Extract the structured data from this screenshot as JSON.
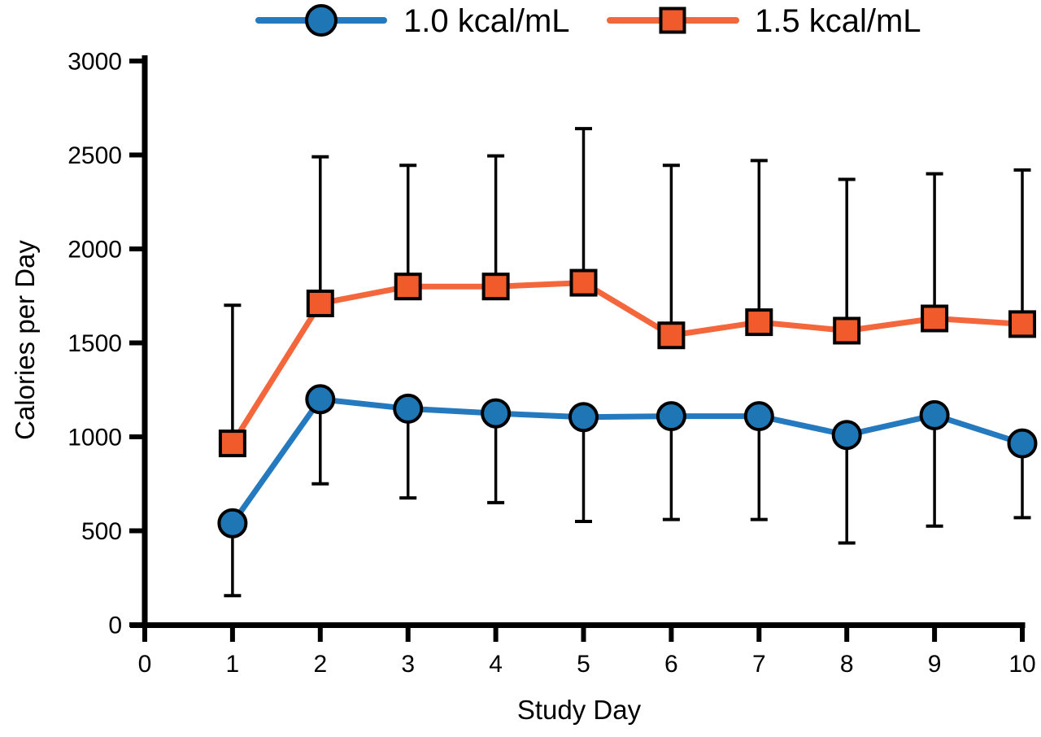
{
  "chart_data": {
    "type": "line",
    "title": "",
    "xlabel": "Study Day",
    "ylabel": "Calories per Day",
    "x": [
      1,
      2,
      3,
      4,
      5,
      6,
      7,
      8,
      9,
      10
    ],
    "xlim": [
      0,
      10
    ],
    "ylim": [
      0,
      3000
    ],
    "xticks": [
      0,
      1,
      2,
      3,
      4,
      5,
      6,
      7,
      8,
      9,
      10
    ],
    "yticks": [
      0,
      500,
      1000,
      1500,
      2000,
      2500,
      3000
    ],
    "grid": false,
    "legend_position": "top",
    "axis_color": "#000000",
    "error_bar_color": "#000000",
    "series": [
      {
        "name": "1.0 kcal/mL",
        "marker": "circle",
        "marker_color": "#1F76B5",
        "line_color": "#2579BE",
        "values": [
          540,
          1200,
          1150,
          1125,
          1105,
          1110,
          1110,
          1010,
          1115,
          965
        ],
        "error_direction": "down",
        "error_bar_ends": [
          155,
          750,
          675,
          650,
          550,
          560,
          560,
          435,
          525,
          570
        ]
      },
      {
        "name": "1.5 kcal/mL",
        "marker": "square",
        "marker_color": "#F15A2B",
        "line_color": "#F4673C",
        "values": [
          965,
          1710,
          1800,
          1800,
          1820,
          1540,
          1610,
          1565,
          1630,
          1600
        ],
        "error_direction": "up",
        "error_bar_ends": [
          1700,
          2490,
          2445,
          2495,
          2640,
          2445,
          2470,
          2370,
          2400,
          2420
        ]
      }
    ]
  }
}
